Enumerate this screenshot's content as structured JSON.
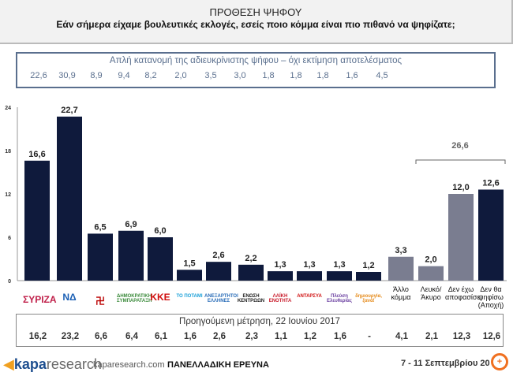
{
  "header": {
    "title": "ΠΡΟΘΕΣΗ ΨΗΦΟΥ",
    "question": "Εάν σήμερα είχαμε βουλευτικές εκλογές, εσείς ποιο κόμμα είναι πιο πιθανό να ψηφίζατε;"
  },
  "distribution": {
    "caption": "Απλή κατανομή της αδιευκρίνιστης ψήφου – όχι εκτίμηση αποτελέσματος",
    "values": [
      "22,6",
      "30,9",
      "8,9",
      "9,4",
      "8,2",
      "2,0",
      "3,5",
      "3,0",
      "1,8",
      "1,8",
      "1,8",
      "1,6",
      "4,5"
    ]
  },
  "previous": {
    "caption": "Προηγούμενη μέτρηση, 22 Ιουνίου 2017",
    "values": [
      "16,2",
      "23,2",
      "6,6",
      "6,4",
      "6,1",
      "1,6",
      "2,6",
      "2,3",
      "1,1",
      "1,2",
      "1,6",
      "-",
      "4,1",
      "2,1",
      "12,3",
      "12,6"
    ]
  },
  "chart_data": {
    "type": "bar",
    "ylim": [
      0,
      24
    ],
    "yticks": [
      0,
      6,
      12,
      18,
      24
    ],
    "grid": false,
    "categories": [
      "ΣΥΡΙΖΑ",
      "ΝΔ",
      "Χρυσή Αυγή",
      "Δημοκρατική Συμπαράταξη",
      "ΚΚΕ",
      "Το Ποτάμι",
      "Ανεξάρτητοι Έλληνες",
      "Ένωση Κεντρώων",
      "ΛΑΕ",
      "ΑΝΤΑΡΣΥΑ",
      "Πλεύση Ελευθερίας",
      "Δημιουργία, Ξανά!",
      "Άλλο κόμμα",
      "Λευκό/ Άκυρο",
      "Δεν έχω αποφασίσει",
      "Δεν θα ψηφίσω (Αποχή)"
    ],
    "values": [
      16.6,
      22.7,
      6.5,
      6.9,
      6.0,
      1.5,
      2.6,
      2.2,
      1.3,
      1.3,
      1.3,
      1.2,
      3.3,
      2.0,
      12.0,
      12.6
    ],
    "value_labels": [
      "16,6",
      "22,7",
      "6,5",
      "6,9",
      "6,0",
      "1,5",
      "2,6",
      "2,2",
      "1,3",
      "1,3",
      "1,3",
      "1,2",
      "3,3",
      "2,0",
      "12,0",
      "12,6"
    ],
    "bar_colors": [
      "#0f1a3c",
      "#0f1a3c",
      "#0f1a3c",
      "#0f1a3c",
      "#0f1a3c",
      "#0f1a3c",
      "#0f1a3c",
      "#0f1a3c",
      "#0f1a3c",
      "#0f1a3c",
      "#0f1a3c",
      "#0f1a3c",
      "#7a7d90",
      "#7a7d90",
      "#7a7d90",
      "#0f1a3c"
    ],
    "bracket_label": "26,6"
  },
  "logos": [
    {
      "text": "ΣΥΡΙΖΑ",
      "color": "#c0204a"
    },
    {
      "text": "ΝΔ",
      "color": "#1a5fb4"
    },
    {
      "text": "卍",
      "color": "#b00"
    },
    {
      "text": "ΔΗΜΟΚΡΑΤΙΚΗ ΣΥΜΠΑΡΑΤΑΞΗ",
      "color": "#3a8a3a"
    },
    {
      "text": "ΚΚΕ",
      "color": "#d01010"
    },
    {
      "text": "ΤΟ ΠΟΤΑΜΙ",
      "color": "#1aa0d8"
    },
    {
      "text": "ΑΝΕΞΑΡΤΗΤΟΙ ΕΛΛΗΝΕΣ",
      "color": "#2a6db8"
    },
    {
      "text": "ΕΝΩΣΗ ΚΕΝΤΡΩΩΝ",
      "color": "#222"
    },
    {
      "text": "ΛΑΪΚΗ ΕΝΟΤΗΤΑ",
      "color": "#c81a2a"
    },
    {
      "text": "ΑΝΤΑΡΣΥΑ",
      "color": "#d01010"
    },
    {
      "text": "Πλεύση Ελευθερίας",
      "color": "#6a3fa0"
    },
    {
      "text": "δημιουργία, ξανά!",
      "color": "#e58a1a"
    }
  ],
  "footer": {
    "brand": "kapa",
    "brand2": "research",
    "site": "kaparesearch.com",
    "center": "ΠΑΝΕΛΛΑΔΙΚΗ ΕΡΕΥΝΑ",
    "date": "7 - 11 Σεπτεμβρίου 20"
  }
}
